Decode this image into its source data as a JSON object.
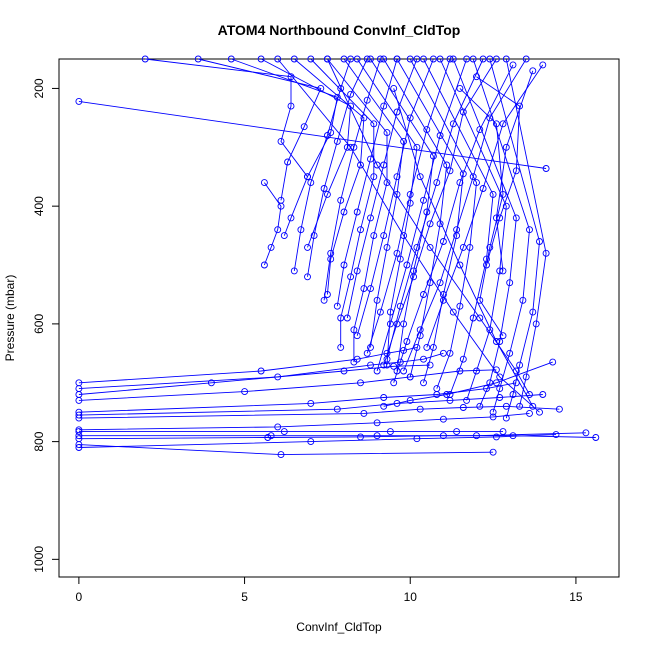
{
  "chart_data": {
    "type": "line",
    "title": "ATOM4 Northbound ConvInf_CldTop",
    "xlabel": "ConvInf_CldTop",
    "ylabel": "Pressure (mbar)",
    "xlim": [
      -0.6,
      16.3
    ],
    "ylim": [
      1030,
      150
    ],
    "y_reversed": true,
    "x_ticks": [
      0,
      5,
      10,
      15
    ],
    "y_ticks": [
      200,
      400,
      600,
      800,
      1000
    ],
    "grid": false,
    "legend": "none",
    "line_color": "#0000ff",
    "marker": "open-circle",
    "series": [
      {
        "x": [
          0.0,
          14.1
        ],
        "y": [
          222,
          336
        ]
      },
      {
        "x": [
          2.0,
          6.4,
          6.4,
          6.1,
          6.9
        ],
        "y": [
          150,
          180,
          230,
          290,
          350
        ]
      },
      {
        "x": [
          3.6,
          7.3,
          6.8,
          6.3,
          6.1
        ],
        "y": [
          150,
          200,
          265,
          325,
          390
        ]
      },
      {
        "x": [
          4.6,
          7.8,
          7.6,
          6.9,
          6.4,
          6.2
        ],
        "y": [
          150,
          215,
          275,
          350,
          420,
          450
        ]
      },
      {
        "x": [
          5.5,
          8.2,
          8.1,
          7.5,
          6.9
        ],
        "y": [
          150,
          230,
          300,
          380,
          470
        ]
      },
      {
        "x": [
          6.5,
          8.6,
          8.5,
          8.0,
          7.6,
          7.5
        ],
        "y": [
          150,
          250,
          330,
          410,
          490,
          550
        ]
      },
      {
        "x": [
          7.0,
          8.9,
          8.9,
          8.5,
          8.2,
          7.9,
          7.9
        ],
        "y": [
          150,
          260,
          350,
          440,
          520,
          590,
          640
        ]
      },
      {
        "x": [
          7.5,
          9.3,
          9.3,
          8.9,
          8.6,
          8.3,
          8.3
        ],
        "y": [
          150,
          275,
          360,
          450,
          540,
          610,
          665
        ]
      },
      {
        "x": [
          8.0,
          9.8,
          9.6,
          9.3,
          9.0,
          8.8
        ],
        "y": [
          150,
          290,
          380,
          470,
          560,
          640
        ]
      },
      {
        "x": [
          8.4,
          10.2,
          10.0,
          9.7,
          9.4,
          9.3
        ],
        "y": [
          150,
          300,
          395,
          490,
          580,
          670
        ]
      },
      {
        "x": [
          8.8,
          10.7,
          10.5,
          10.1,
          9.8,
          9.6
        ],
        "y": [
          150,
          315,
          410,
          510,
          600,
          680
        ]
      },
      {
        "x": [
          9.2,
          11.1,
          10.9,
          10.6,
          10.3,
          10.0
        ],
        "y": [
          150,
          330,
          430,
          530,
          620,
          690
        ]
      },
      {
        "x": [
          9.6,
          11.6,
          11.4,
          11.0,
          10.7,
          10.4
        ],
        "y": [
          150,
          345,
          450,
          550,
          640,
          700
        ]
      },
      {
        "x": [
          10.0,
          12.0,
          11.8,
          11.5,
          11.2,
          10.8
        ],
        "y": [
          150,
          360,
          470,
          570,
          650,
          710
        ]
      },
      {
        "x": [
          10.4,
          12.5,
          12.3,
          11.9,
          11.6,
          11.2
        ],
        "y": [
          150,
          380,
          490,
          590,
          660,
          720
        ]
      },
      {
        "x": [
          10.9,
          12.9,
          12.7,
          12.4,
          12.0,
          11.7
        ],
        "y": [
          150,
          400,
          510,
          610,
          680,
          730
        ]
      },
      {
        "x": [
          11.3,
          13.2,
          13.0,
          12.7,
          12.4,
          12.1
        ],
        "y": [
          150,
          420,
          530,
          630,
          700,
          740
        ]
      },
      {
        "x": [
          11.9,
          13.6,
          13.4,
          13.0,
          12.7,
          12.5
        ],
        "y": [
          150,
          440,
          560,
          650,
          710,
          750
        ]
      },
      {
        "x": [
          12.4,
          13.9,
          13.7,
          13.3,
          13.1,
          12.9
        ],
        "y": [
          150,
          460,
          580,
          670,
          720,
          760
        ]
      },
      {
        "x": [
          12.9,
          14.1,
          13.8,
          13.5,
          13.3
        ],
        "y": [
          150,
          480,
          600,
          690,
          740
        ]
      },
      {
        "x": [
          13.5,
          12.4,
          11.9,
          11.4,
          10.9,
          10.3,
          9.8
        ],
        "y": [
          150,
          250,
          350,
          440,
          530,
          610,
          680
        ]
      },
      {
        "x": [
          13.1,
          12.1,
          11.5,
          11.0,
          10.4,
          9.9,
          9.5
        ],
        "y": [
          160,
          270,
          360,
          460,
          550,
          630,
          700
        ]
      },
      {
        "x": [
          12.6,
          11.6,
          11.2,
          10.6,
          10.1,
          9.6,
          9.2
        ],
        "y": [
          150,
          240,
          340,
          430,
          520,
          600,
          670
        ]
      },
      {
        "x": [
          12.2,
          11.3,
          10.8,
          10.2,
          9.7,
          9.3
        ],
        "y": [
          150,
          260,
          360,
          470,
          570,
          660
        ]
      },
      {
        "x": [
          11.7,
          10.9,
          10.4,
          9.9,
          9.4,
          9.0
        ],
        "y": [
          150,
          280,
          390,
          500,
          600,
          680
        ]
      },
      {
        "x": [
          11.2,
          10.5,
          10.0,
          9.6,
          9.1,
          8.7
        ],
        "y": [
          150,
          270,
          380,
          480,
          580,
          650
        ]
      },
      {
        "x": [
          10.7,
          10.0,
          9.6,
          9.2,
          8.8,
          8.4
        ],
        "y": [
          150,
          250,
          350,
          450,
          540,
          620
        ]
      },
      {
        "x": [
          10.2,
          9.6,
          9.2,
          8.8,
          8.4,
          8.1
        ],
        "y": [
          150,
          240,
          330,
          420,
          510,
          590
        ]
      },
      {
        "x": [
          9.6,
          9.2,
          8.8,
          8.4,
          8.0,
          7.8
        ],
        "y": [
          150,
          230,
          320,
          410,
          500,
          570
        ]
      },
      {
        "x": [
          9.1,
          8.7,
          8.3,
          7.9,
          7.6,
          7.4
        ],
        "y": [
          150,
          220,
          300,
          390,
          480,
          560
        ]
      },
      {
        "x": [
          8.7,
          8.2,
          7.8,
          7.4,
          7.1,
          6.9
        ],
        "y": [
          150,
          210,
          290,
          370,
          450,
          520
        ]
      },
      {
        "x": [
          8.2,
          7.9,
          7.5,
          7.0,
          6.7,
          6.5
        ],
        "y": [
          150,
          200,
          280,
          360,
          440,
          510
        ]
      },
      {
        "x": [
          14.0,
          12.8,
          12.2,
          11.6,
          11.0,
          10.5
        ],
        "y": [
          160,
          260,
          370,
          470,
          560,
          640
        ]
      },
      {
        "x": [
          13.7,
          12.9,
          12.6,
          12.8
        ],
        "y": [
          170,
          300,
          420,
          510
        ]
      },
      {
        "x": [
          12.0,
          13.3,
          13.2,
          12.7,
          12.3
        ],
        "y": [
          180,
          230,
          340,
          420,
          500
        ]
      },
      {
        "x": [
          11.5,
          12.6,
          12.8,
          12.4,
          12.1,
          12.8
        ],
        "y": [
          200,
          260,
          380,
          470,
          560,
          620
        ]
      },
      {
        "x": [
          7.5,
          9.0,
          10.6,
          12.1,
          13.2,
          13.6
        ],
        "y": [
          150,
          330,
          470,
          590,
          680,
          720
        ]
      },
      {
        "x": [
          6.0,
          8.2,
          9.8,
          11.3,
          12.7,
          13.9
        ],
        "y": [
          150,
          300,
          450,
          580,
          690,
          750
        ]
      },
      {
        "x": [
          9.5,
          10.3,
          11.5,
          12.6,
          13.7
        ],
        "y": [
          200,
          350,
          500,
          630,
          740
        ]
      },
      {
        "x": [
          14.3,
          12.6,
          11.1,
          10.0,
          9.2
        ],
        "y": [
          665,
          700,
          720,
          730,
          740
        ]
      },
      {
        "x": [
          0.0,
          5.5,
          8.4,
          9.3,
          9.8,
          10.2
        ],
        "y": [
          700,
          680,
          660,
          650,
          645,
          640
        ]
      },
      {
        "x": [
          0.0,
          6.0,
          8.8,
          9.7,
          10.4,
          11.0
        ],
        "y": [
          710,
          690,
          670,
          665,
          660,
          650
        ]
      },
      {
        "x": [
          0.0,
          4.0,
          8.0,
          9.5,
          10.6
        ],
        "y": [
          720,
          700,
          680,
          672,
          670
        ]
      },
      {
        "x": [
          0.0,
          5.0,
          8.5,
          10.0,
          11.5,
          12.6
        ],
        "y": [
          730,
          715,
          700,
          690,
          680,
          678
        ]
      },
      {
        "x": [
          0.0,
          7.0,
          9.2,
          10.8,
          12.3,
          13.2
        ],
        "y": [
          750,
          735,
          725,
          720,
          710,
          700
        ]
      },
      {
        "x": [
          0.0,
          7.8,
          9.6,
          11.2,
          12.7,
          14.0
        ],
        "y": [
          755,
          745,
          735,
          730,
          725,
          720
        ]
      },
      {
        "x": [
          0.0,
          8.6,
          10.3,
          11.6,
          12.9,
          14.5
        ],
        "y": [
          760,
          752,
          745,
          742,
          740,
          745
        ]
      },
      {
        "x": [
          0.0,
          6.0,
          9.0,
          11.0,
          12.5,
          13.6
        ],
        "y": [
          780,
          775,
          768,
          762,
          758,
          752
        ]
      },
      {
        "x": [
          0.0,
          6.2,
          9.4,
          11.4,
          12.8
        ],
        "y": [
          783,
          783,
          783,
          783,
          783
        ]
      },
      {
        "x": [
          0.0,
          5.8,
          9.0,
          12.0,
          15.3
        ],
        "y": [
          790,
          790,
          790,
          790,
          785
        ]
      },
      {
        "x": [
          0.0,
          5.7,
          8.5,
          11.0,
          13.1,
          15.6
        ],
        "y": [
          795,
          793,
          792,
          790,
          790,
          793
        ]
      },
      {
        "x": [
          0.0,
          6.1,
          12.5
        ],
        "y": [
          805,
          822,
          818
        ]
      },
      {
        "x": [
          0.0,
          7.0,
          10.2,
          12.6,
          14.4
        ],
        "y": [
          810,
          800,
          795,
          792,
          788
        ]
      },
      {
        "x": [
          5.6,
          6.1,
          6.0,
          5.8,
          5.6
        ],
        "y": [
          360,
          400,
          440,
          470,
          500
        ]
      }
    ]
  }
}
